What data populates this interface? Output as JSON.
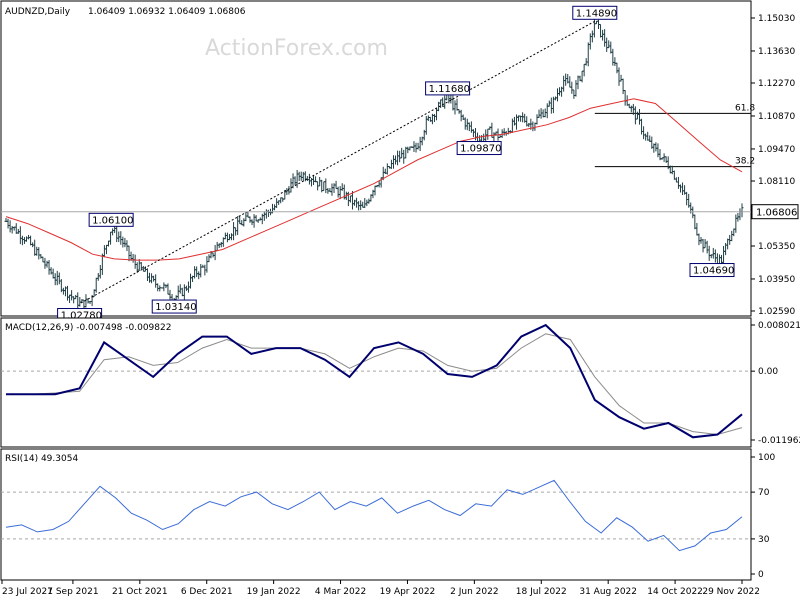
{
  "chart_data": [
    {
      "type": "line",
      "header": {
        "symbol": "AUDNZD,Daily",
        "ohlc": "1.06409 1.06932 1.06409 1.06806"
      },
      "watermark": "ActionForex.com",
      "x_tick_labels": [
        "23 Jul 2021",
        "7 Sep 2021",
        "21 Oct 2021",
        "6 Dec 2021",
        "19 Jan 2022",
        "4 Mar 2022",
        "19 Apr 2022",
        "2 Jun 2022",
        "18 Jul 2022",
        "31 Aug 2022",
        "14 Oct 2022",
        "29 Nov 2022"
      ],
      "y_tick_labels": [
        "1.15030",
        "1.13630",
        "1.12270",
        "1.10870",
        "1.09470",
        "1.08110",
        "1.06710",
        "1.05350",
        "1.03950",
        "1.02590"
      ],
      "ylim": [
        1.0259,
        1.1503
      ],
      "current_price": "1.06806",
      "annotations": [
        {
          "label": "1.02780",
          "value": 1.0278
        },
        {
          "label": "1.06100",
          "value": 1.061
        },
        {
          "label": "1.03140",
          "value": 1.0314
        },
        {
          "label": "1.11680",
          "value": 1.1168
        },
        {
          "label": "1.09870",
          "value": 1.0987
        },
        {
          "label": "1.14890",
          "value": 1.1489
        },
        {
          "label": "1.04690",
          "value": 1.0469
        }
      ],
      "fibonacci": [
        {
          "label": "61.8",
          "value": 1.1098
        },
        {
          "label": "38.2",
          "value": 1.0872
        }
      ],
      "price_path": [
        1.064,
        1.06,
        1.056,
        1.05,
        1.044,
        1.038,
        1.033,
        1.029,
        1.03,
        1.046,
        1.061,
        1.056,
        1.047,
        1.043,
        1.038,
        1.036,
        1.0314,
        1.035,
        1.042,
        1.045,
        1.053,
        1.058,
        1.062,
        1.065,
        1.066,
        1.068,
        1.072,
        1.079,
        1.084,
        1.083,
        1.079,
        1.078,
        1.076,
        1.072,
        1.069,
        1.079,
        1.084,
        1.09,
        1.093,
        1.095,
        1.106,
        1.112,
        1.1168,
        1.11,
        1.104,
        1.0987,
        1.102,
        1.1,
        1.104,
        1.108,
        1.105,
        1.11,
        1.114,
        1.124,
        1.119,
        1.13,
        1.1489,
        1.14,
        1.13,
        1.115,
        1.108,
        1.098,
        1.093,
        1.088,
        1.08,
        1.07,
        1.056,
        1.05,
        1.0469,
        1.06,
        1.068
      ],
      "ma_path": [
        1.066,
        1.063,
        1.059,
        1.055,
        1.05,
        1.048,
        1.0475,
        1.0475,
        1.048,
        1.05,
        1.052,
        1.056,
        1.06,
        1.064,
        1.068,
        1.072,
        1.076,
        1.08,
        1.085,
        1.09,
        1.094,
        1.098,
        1.1,
        1.101,
        1.103,
        1.105,
        1.108,
        1.112,
        1.114,
        1.116,
        1.114,
        1.106,
        1.098,
        1.09,
        1.085
      ],
      "indicators": [
        {
          "name": "MACD(12,26,9) -0.007498 -0.009822",
          "tick_labels": [
            "0.008021",
            "0.00",
            "-0.011962"
          ],
          "ylim": [
            -0.011962,
            0.008021
          ],
          "macd_path": [
            -0.004,
            -0.004,
            -0.004,
            -0.003,
            0.005,
            0.002,
            -0.001,
            0.003,
            0.006,
            0.006,
            0.003,
            0.004,
            0.004,
            0.002,
            -0.001,
            0.004,
            0.005,
            0.003,
            -0.0005,
            -0.001,
            0.001,
            0.006,
            0.008,
            0.004,
            -0.005,
            -0.008,
            -0.01,
            -0.009,
            -0.0115,
            -0.011,
            -0.0075
          ],
          "signal_path": [
            -0.004,
            -0.004,
            -0.0038,
            -0.0035,
            0.002,
            0.0025,
            0.001,
            0.0015,
            0.004,
            0.0055,
            0.004,
            0.004,
            0.004,
            0.003,
            0.0005,
            0.0025,
            0.004,
            0.0035,
            0.001,
            0.0,
            0.0005,
            0.004,
            0.0065,
            0.0055,
            -0.001,
            -0.006,
            -0.009,
            -0.009,
            -0.0105,
            -0.011,
            -0.0098
          ]
        },
        {
          "name": "RSI(14) 49.3054",
          "tick_labels": [
            "100",
            "70",
            "30",
            "0"
          ],
          "ylim": [
            0,
            100
          ],
          "levels": [
            70,
            30
          ],
          "rsi_path": [
            40,
            42,
            36,
            38,
            45,
            60,
            75,
            65,
            52,
            46,
            38,
            43,
            55,
            62,
            58,
            66,
            70,
            60,
            55,
            62,
            70,
            55,
            62,
            58,
            65,
            52,
            58,
            63,
            55,
            50,
            60,
            58,
            72,
            68,
            74,
            80,
            62,
            45,
            35,
            48,
            40,
            28,
            33,
            20,
            24,
            35,
            38,
            49
          ]
        }
      ]
    }
  ],
  "colors": {
    "ohlc": "#1f3d44",
    "moving_average": "#e03030",
    "macd": "#00006e",
    "signal": "#8c8c8c",
    "rsi": "#3b6cd8",
    "grid": "#a8a8a8",
    "frame": "#000000"
  }
}
